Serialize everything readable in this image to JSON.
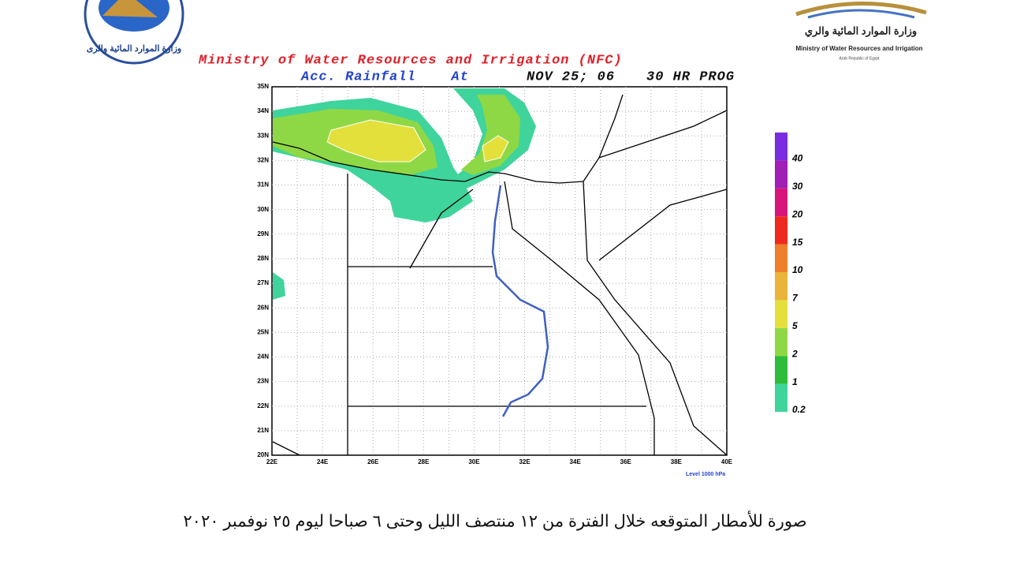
{
  "header": {
    "title": "Ministry of Water Resources and Irrigation (NFC)",
    "subtitle": "Acc. Rainfall    At",
    "date": "NOV 25; 06",
    "prog": "30 HR PROG"
  },
  "logo_right": {
    "arabic": "وزارة الموارد المائية والري",
    "english": "Ministry of Water Resources and Irrigation",
    "country": "Arab Republic of Egypt"
  },
  "map": {
    "lat_labels": [
      "20N",
      "21N",
      "22N",
      "23N",
      "24N",
      "25N",
      "26N",
      "27N",
      "28N",
      "29N",
      "30N",
      "31N",
      "32N",
      "33N",
      "34N",
      "35N"
    ],
    "lon_labels": [
      "22E",
      "24E",
      "26E",
      "28E",
      "30E",
      "32E",
      "34E",
      "36E",
      "38E",
      "40E"
    ],
    "level": "Level 1000 hPa"
  },
  "legend": {
    "labels": [
      0.2,
      1,
      2,
      5,
      7,
      10,
      15,
      20,
      30,
      40
    ],
    "colors": [
      "#3fd49b",
      "#2ebd3b",
      "#8fd845",
      "#e3e03c",
      "#eab33a",
      "#ee7f2c",
      "#ee2a1e",
      "#d8167a",
      "#a01fb4",
      "#7a2de0"
    ]
  },
  "caption": "صورة للأمطار المتوقعه خلال الفترة من ١٢ منتصف الليل وحتى ٦ صباحا ليوم ٢٥ نوفمبر ٢٠٢٠"
}
